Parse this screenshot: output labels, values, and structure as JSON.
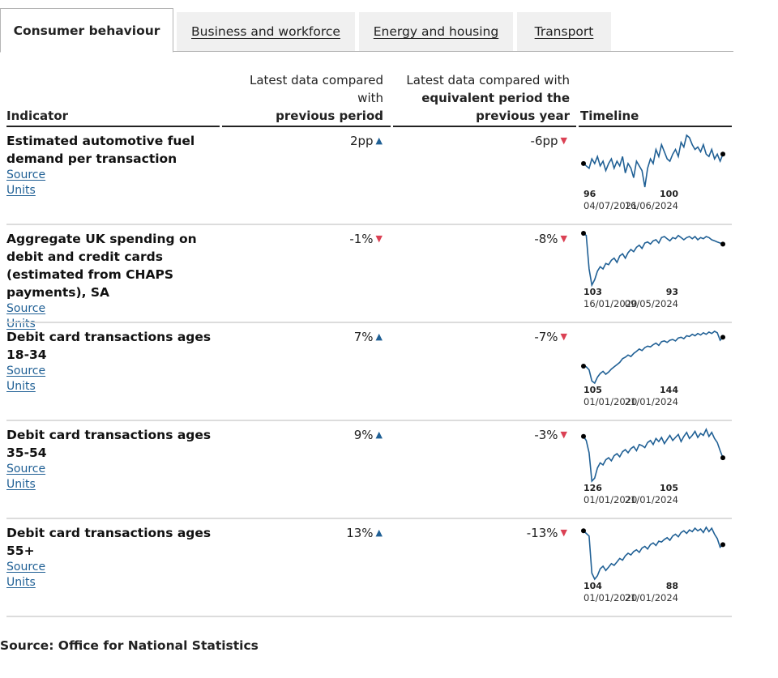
{
  "tabs": [
    {
      "label": "Consumer behaviour",
      "active": true
    },
    {
      "label": "Business and workforce",
      "active": false
    },
    {
      "label": "Energy and housing",
      "active": false
    },
    {
      "label": "Transport",
      "active": false
    }
  ],
  "table": {
    "headers": {
      "indicator": "Indicator",
      "prev_line1": "Latest data compared",
      "prev_line2": "with",
      "prev_line3": "previous period",
      "year_line1": "Latest data compared with",
      "year_line2": "equivalent period the",
      "year_line3": "previous year",
      "timeline": "Timeline"
    },
    "rows": [
      {
        "indicator": "Estimated automotive fuel demand per transaction",
        "source_label": "Source",
        "units_label": "Units",
        "prev_change": "2pp",
        "prev_dir": "up",
        "year_change": "-6pp",
        "year_dir": "down",
        "start_value": "96",
        "end_value": "100",
        "start_date": "04/07/2021",
        "end_date": "16/06/2024",
        "series": [
          96,
          95,
          94,
          98,
          96,
          99,
          95,
          97,
          93,
          96,
          98,
          94,
          97,
          95,
          99,
          92,
          96,
          94,
          90,
          97,
          95,
          93,
          86,
          94,
          98,
          96,
          102,
          99,
          104,
          101,
          98,
          97,
          100,
          102,
          99,
          105,
          103,
          108,
          107,
          104,
          102,
          103,
          101,
          104,
          100,
          99,
          102,
          98,
          100,
          97,
          100
        ]
      },
      {
        "indicator": "Aggregate UK spending on debit and credit cards (estimated from CHAPS payments), SA",
        "source_label": "Source",
        "units_label": "Units",
        "prev_change": "-1%",
        "prev_dir": "down",
        "year_change": "-8%",
        "year_dir": "down",
        "start_value": "103",
        "end_value": "93",
        "start_date": "16/01/2020",
        "end_date": "09/05/2024",
        "series": [
          103,
          101,
          70,
          55,
          60,
          68,
          72,
          70,
          75,
          74,
          78,
          80,
          76,
          82,
          84,
          80,
          85,
          88,
          86,
          90,
          92,
          89,
          94,
          95,
          93,
          96,
          97,
          94,
          99,
          100,
          98,
          96,
          99,
          98,
          101,
          99,
          97,
          99,
          100,
          98,
          100,
          97,
          99,
          98,
          100,
          99,
          97,
          96,
          95,
          94,
          93
        ]
      },
      {
        "indicator": "Debit card transactions ages 18-34",
        "source_label": "Source",
        "units_label": "Units",
        "prev_change": "7%",
        "prev_dir": "up",
        "year_change": "-7%",
        "year_dir": "down",
        "start_value": "105",
        "end_value": "144",
        "start_date": "01/01/2020",
        "end_date": "21/01/2024",
        "series": [
          105,
          104,
          100,
          85,
          82,
          90,
          95,
          98,
          94,
          97,
          101,
          104,
          107,
          110,
          115,
          117,
          120,
          118,
          122,
          125,
          128,
          126,
          130,
          132,
          131,
          134,
          136,
          133,
          138,
          139,
          137,
          140,
          141,
          139,
          143,
          144,
          142,
          146,
          145,
          148,
          146,
          149,
          147,
          150,
          148,
          151,
          149,
          152,
          150,
          140,
          144
        ]
      },
      {
        "indicator": "Debit card transactions ages 35-54",
        "source_label": "Source",
        "units_label": "Units",
        "prev_change": "9%",
        "prev_dir": "up",
        "year_change": "-3%",
        "year_dir": "down",
        "start_value": "126",
        "end_value": "105",
        "start_date": "01/01/2020",
        "end_date": "21/01/2024",
        "series": [
          126,
          122,
          110,
          82,
          85,
          95,
          100,
          98,
          103,
          105,
          102,
          107,
          109,
          106,
          111,
          113,
          110,
          114,
          116,
          112,
          118,
          117,
          115,
          120,
          122,
          118,
          124,
          121,
          125,
          119,
          123,
          127,
          122,
          125,
          128,
          121,
          126,
          130,
          124,
          127,
          131,
          125,
          129,
          127,
          133,
          126,
          130,
          124,
          120,
          112,
          105
        ]
      },
      {
        "indicator": "Debit card transactions ages 55+",
        "source_label": "Source",
        "units_label": "Units",
        "prev_change": "13%",
        "prev_dir": "up",
        "year_change": "-13%",
        "year_dir": "down",
        "start_value": "104",
        "end_value": "88",
        "start_date": "01/01/2020",
        "end_date": "21/01/2024",
        "series": [
          104,
          101,
          98,
          55,
          48,
          52,
          60,
          63,
          58,
          62,
          66,
          64,
          68,
          72,
          70,
          75,
          78,
          76,
          80,
          82,
          79,
          84,
          86,
          83,
          88,
          90,
          87,
          92,
          91,
          94,
          96,
          93,
          98,
          100,
          97,
          102,
          104,
          101,
          105,
          103,
          107,
          104,
          106,
          102,
          108,
          103,
          107,
          100,
          95,
          85,
          88
        ]
      }
    ]
  },
  "footer": {
    "source": "Source: Office for National Statistics"
  },
  "colors": {
    "line": "#206095",
    "up_arrow": "#206095",
    "down_arrow": "#e06666",
    "marker": "#000000"
  }
}
